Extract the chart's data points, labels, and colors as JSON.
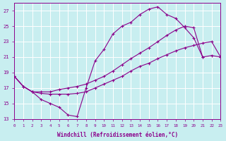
{
  "xlabel": "Windchill (Refroidissement éolien,°C)",
  "bg_color": "#c8eef0",
  "line_color": "#8b008b",
  "grid_color": "#ffffff",
  "xlim": [
    0,
    23
  ],
  "ylim": [
    13,
    28
  ],
  "xticks": [
    0,
    1,
    2,
    3,
    4,
    5,
    6,
    7,
    8,
    9,
    10,
    11,
    12,
    13,
    14,
    15,
    16,
    17,
    18,
    19,
    20,
    21,
    22,
    23
  ],
  "yticks": [
    13,
    15,
    17,
    19,
    21,
    23,
    25,
    27
  ],
  "line1_x": [
    0,
    1,
    2,
    3,
    4,
    5,
    6,
    7,
    8,
    9,
    10,
    11,
    12,
    13,
    14,
    15,
    16,
    17,
    18,
    19,
    20,
    21
  ],
  "line1_y": [
    18.5,
    17.2,
    16.5,
    15.5,
    15.0,
    14.5,
    13.5,
    13.3,
    17.0,
    20.5,
    22.0,
    24.0,
    25.0,
    25.5,
    26.5,
    27.2,
    27.5,
    26.5,
    26.0,
    24.8,
    23.5,
    21.0
  ],
  "line2_x": [
    0,
    1,
    2,
    3,
    4,
    5,
    6,
    7,
    8,
    9,
    10,
    11,
    12,
    13,
    14,
    15,
    16,
    17,
    18,
    19,
    20,
    21,
    22,
    23
  ],
  "line2_y": [
    18.5,
    17.2,
    16.5,
    16.5,
    16.5,
    16.8,
    17.0,
    17.2,
    17.5,
    18.0,
    18.5,
    19.2,
    20.0,
    20.8,
    21.5,
    22.2,
    23.0,
    23.8,
    24.5,
    25.0,
    24.8,
    21.0,
    21.2,
    21.0
  ],
  "line3_x": [
    0,
    1,
    2,
    3,
    4,
    5,
    6,
    7,
    8,
    9,
    10,
    11,
    12,
    13,
    14,
    15,
    16,
    17,
    18,
    19,
    20,
    21,
    22,
    23
  ],
  "line3_y": [
    18.5,
    17.2,
    16.5,
    16.3,
    16.2,
    16.2,
    16.2,
    16.3,
    16.5,
    17.0,
    17.5,
    18.0,
    18.5,
    19.2,
    19.8,
    20.2,
    20.8,
    21.3,
    21.8,
    22.2,
    22.5,
    22.8,
    23.0,
    21.0
  ]
}
